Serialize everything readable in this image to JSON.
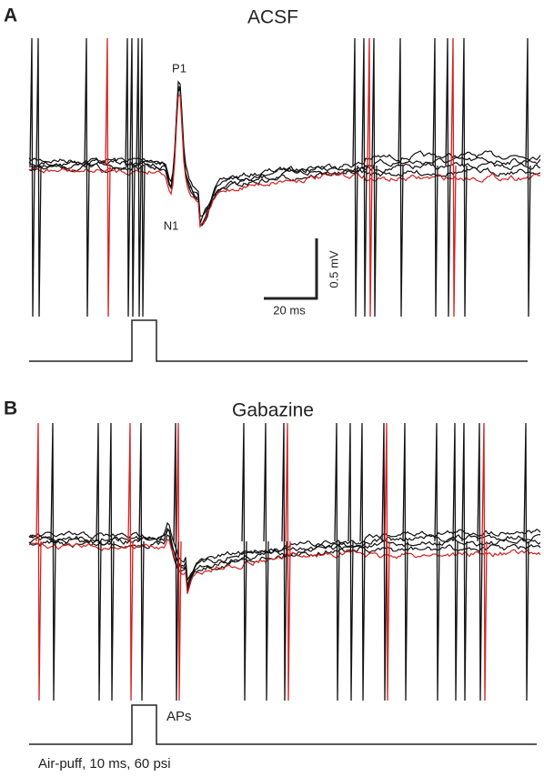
{
  "panel_a": {
    "label": "A",
    "title": "ACSF",
    "peak_label": "P1",
    "trough_label": "N1",
    "scale_y_label": "0.5 mV",
    "scale_x_label": "20 ms"
  },
  "panel_b": {
    "label": "B",
    "title": "Gabazine",
    "spike_label": "APs",
    "stimulus_label": "Air-puff, 10 ms, 60 psi"
  }
}
